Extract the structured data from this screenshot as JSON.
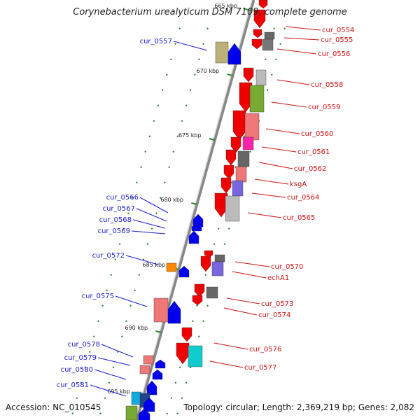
{
  "title": "Corynebacterium urealyticum DSM 7109, complete genome",
  "footer": {
    "accession": "Accession: NC_010545",
    "topology": "Topology: circular; Length: 2,369,219 bp; Genes: 2,082"
  },
  "kbp_marks": [
    {
      "text": "665 kbp"
    },
    {
      "text": "670 kbp"
    },
    {
      "text": "675 kbp"
    },
    {
      "text": "680 kbp"
    },
    {
      "text": "685 kbp"
    },
    {
      "text": "690 kbp"
    },
    {
      "text": "695 kbp"
    }
  ],
  "right_labels": [
    "cur_0554",
    "cur_0555",
    "cur_0556",
    "cur_0558",
    "cur_0559",
    "cur_0560",
    "cur_0561",
    "cur_0562",
    "ksgA",
    "cur_0564",
    "cur_0565",
    "cur_0570",
    "echA1",
    "cur_0573",
    "cur_0574",
    "cur_0576",
    "cur_0577"
  ],
  "left_labels": [
    "cur_0557",
    "cur_0566",
    "cur_0567",
    "cur_0568",
    "cur_0569",
    "cur_0572",
    "cur_0575",
    "cur_0578",
    "cur_0579",
    "cur_0580",
    "cur_0581"
  ],
  "colors": {
    "forward": "#0000ee",
    "reverse": "#ee0000",
    "axis": "#888888",
    "tick": "#2a8a2a",
    "left_label": "#1a1acc",
    "right_label": "#cc1111"
  }
}
